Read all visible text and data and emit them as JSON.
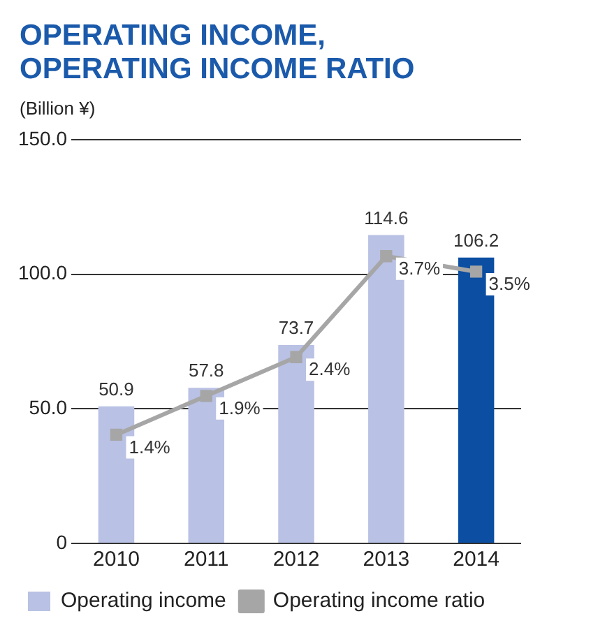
{
  "chart_data": {
    "type": "bar",
    "title": [
      "OPERATING INCOME,",
      "OPERATING INCOME RATIO"
    ],
    "ylabel": "(Billion ¥)",
    "categories": [
      "2010",
      "2011",
      "2012",
      "2013",
      "2014"
    ],
    "series": [
      {
        "name": "Operating income",
        "colors": [
          "#b9c1e4",
          "#b9c1e4",
          "#b9c1e4",
          "#b9c1e4",
          "#0b4ea2"
        ],
        "values": [
          50.9,
          57.8,
          73.7,
          114.6,
          106.2
        ],
        "value_labels": [
          "50.9",
          "57.8",
          "73.7",
          "114.6",
          "106.2"
        ]
      },
      {
        "name": "Operating income ratio",
        "type": "line",
        "axis": "y2",
        "color": "#a6a6a6",
        "marker": "square",
        "values": [
          1.4,
          1.9,
          2.4,
          3.7,
          3.5
        ],
        "value_labels": [
          "1.4%",
          "1.9%",
          "2.4%",
          "3.7%",
          "3.5%"
        ]
      }
    ],
    "ylim": [
      0,
      150
    ],
    "yticks": [
      {
        "value": 0,
        "label": "0"
      },
      {
        "value": 50,
        "label": "50.0"
      },
      {
        "value": 100,
        "label": "100.0"
      },
      {
        "value": 150,
        "label": "150.0"
      }
    ],
    "y2lim": [
      0,
      5.2
    ],
    "grid": "y",
    "legend": "bottom left"
  }
}
